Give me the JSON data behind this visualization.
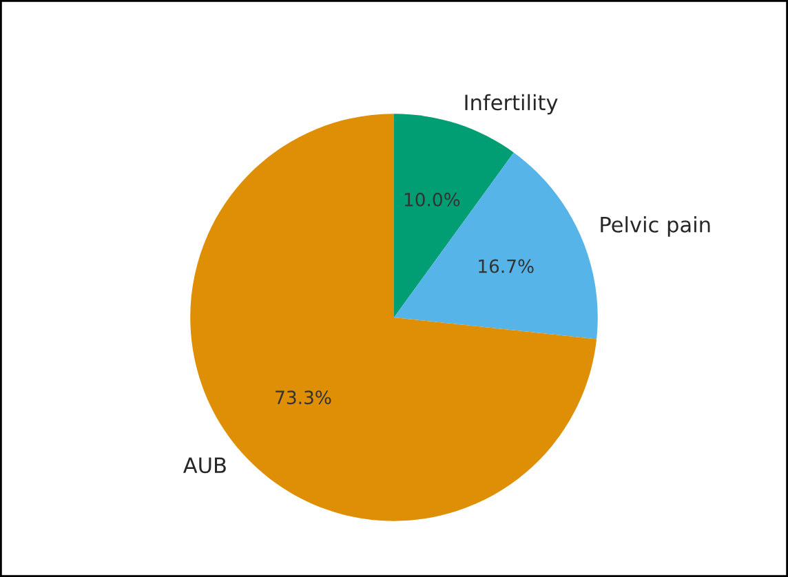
{
  "chart_data": {
    "type": "pie",
    "categories": [
      "Infertility",
      "Pelvic pain",
      "AUB"
    ],
    "values": [
      10.0,
      16.7,
      73.3
    ],
    "colors": [
      "#029e73",
      "#56b4e9",
      "#de8f05"
    ],
    "value_labels": [
      "10.0%",
      "16.7%",
      "73.3%"
    ],
    "legend": false
  }
}
